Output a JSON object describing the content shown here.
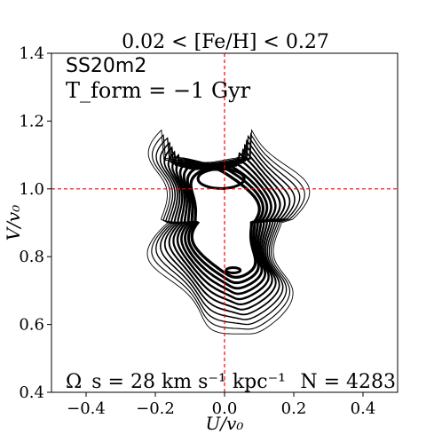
{
  "chart_data": {
    "type": "contour",
    "title": "0.02 < [Fe/H] < 0.27",
    "xlabel": "U/v₀",
    "ylabel": "V/v₀",
    "xlim": [
      -0.5,
      0.5
    ],
    "ylim": [
      0.4,
      1.4
    ],
    "xticks": [
      -0.4,
      -0.2,
      0.0,
      0.2,
      0.4
    ],
    "xtick_labels": [
      "−0.4",
      "−0.2",
      "0.0",
      "0.2",
      "0.4"
    ],
    "yticks": [
      0.4,
      0.6,
      0.8,
      1.0,
      1.2,
      1.4
    ],
    "ytick_labels": [
      "0.4",
      "0.6",
      "0.8",
      "1.0",
      "1.2",
      "1.4"
    ],
    "reference_lines": {
      "x": 0.0,
      "y": 1.0,
      "color": "#ff0000",
      "style": "dashed"
    },
    "peaks": [
      {
        "name": "upper",
        "u": -0.02,
        "v": 1.02
      },
      {
        "name": "lower",
        "u": 0.02,
        "v": 0.78
      }
    ],
    "contour_levels": 12,
    "annotations": {
      "model": "SS20m2",
      "t_form": "T_form = −1 Gyr",
      "omega": "Ω_s = 28 km s⁻¹ kpc⁻¹",
      "n_stars": "N = 4283"
    }
  }
}
